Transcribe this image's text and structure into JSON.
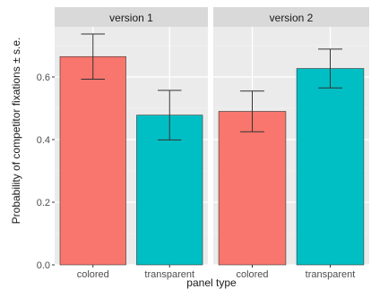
{
  "chart_data": {
    "type": "bar",
    "facets": [
      {
        "label": "version 1",
        "categories": [
          "colored",
          "transparent"
        ],
        "values": [
          0.665,
          0.478
        ],
        "error": [
          0.072,
          0.079
        ],
        "colors": [
          "#F8766D",
          "#00BFC4"
        ]
      },
      {
        "label": "version 2",
        "categories": [
          "colored",
          "transparent"
        ],
        "values": [
          0.49,
          0.627
        ],
        "error": [
          0.065,
          0.062
        ],
        "colors": [
          "#F8766D",
          "#00BFC4"
        ]
      }
    ],
    "xlabel": "panel type",
    "ylabel": "Probability of competitor fixations ± s.e.",
    "ylim": [
      0,
      0.76
    ],
    "yticks": [
      0.0,
      0.2,
      0.4,
      0.6
    ],
    "ytick_labels": [
      "0.0",
      "0.2",
      "0.4",
      "0.6"
    ],
    "grid": true,
    "legend": "none",
    "panel_background": "#EBEBEB",
    "strip_background": "#D9D9D9"
  }
}
